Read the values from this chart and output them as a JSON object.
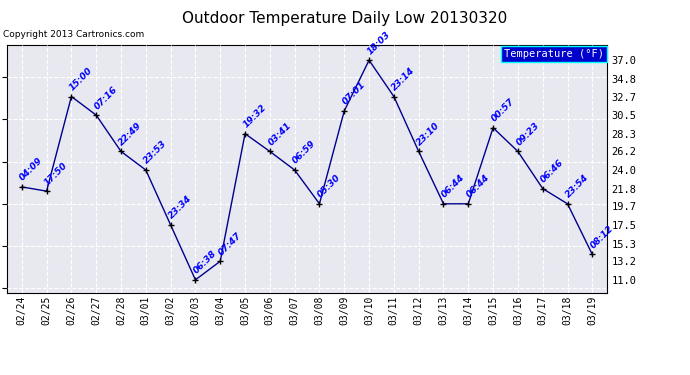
{
  "title": "Outdoor Temperature Daily Low 20130320",
  "copyright": "Copyright 2013 Cartronics.com",
  "legend_label": "Temperature (°F)",
  "fig_bg_color": "#ffffff",
  "plot_bg_color": "#e8e8f0",
  "line_color": "#00008b",
  "marker_color": "#000000",
  "grid_color": "#ffffff",
  "x_labels": [
    "02/24",
    "02/25",
    "02/26",
    "02/27",
    "02/28",
    "03/01",
    "03/02",
    "03/03",
    "03/04",
    "03/05",
    "03/06",
    "03/07",
    "03/08",
    "03/09",
    "03/10",
    "03/11",
    "03/12",
    "03/13",
    "03/14",
    "03/15",
    "03/16",
    "03/17",
    "03/18",
    "03/19"
  ],
  "y_values": [
    22.0,
    21.5,
    32.7,
    30.5,
    26.2,
    24.0,
    17.5,
    11.0,
    13.2,
    28.3,
    26.2,
    24.0,
    20.0,
    31.0,
    37.0,
    32.7,
    26.2,
    20.0,
    20.0,
    29.0,
    26.2,
    21.8,
    20.0,
    14.0
  ],
  "point_labels": [
    "04:09",
    "17:50",
    "15:00",
    "07:16",
    "22:49",
    "23:53",
    "23:34",
    "06:38",
    "07:47",
    "19:32",
    "03:41",
    "06:59",
    "05:30",
    "07:01",
    "18:03",
    "23:14",
    "23:10",
    "06:44",
    "06:44",
    "00:57",
    "09:23",
    "06:46",
    "23:54",
    "08:12"
  ],
  "yticks": [
    11.0,
    13.2,
    15.3,
    17.5,
    19.7,
    21.8,
    24.0,
    26.2,
    28.3,
    30.5,
    32.7,
    34.8,
    37.0
  ],
  "ylim": [
    9.5,
    38.8
  ],
  "label_va": [
    "bottom",
    "bottom",
    "bottom",
    "bottom",
    "bottom",
    "bottom",
    "bottom",
    "bottom",
    "bottom",
    "bottom",
    "bottom",
    "bottom",
    "bottom",
    "bottom",
    "bottom",
    "bottom",
    "bottom",
    "bottom",
    "bottom",
    "bottom",
    "bottom",
    "bottom",
    "bottom",
    "bottom"
  ],
  "label_dx": [
    2,
    2,
    2,
    2,
    2,
    2,
    2,
    2,
    2,
    2,
    2,
    2,
    2,
    2,
    2,
    2,
    2,
    2,
    2,
    2,
    2,
    2,
    2,
    2
  ],
  "label_dy": [
    3,
    3,
    3,
    3,
    3,
    3,
    3,
    3,
    3,
    3,
    3,
    3,
    3,
    3,
    3,
    3,
    3,
    3,
    3,
    3,
    3,
    3,
    3,
    3
  ]
}
